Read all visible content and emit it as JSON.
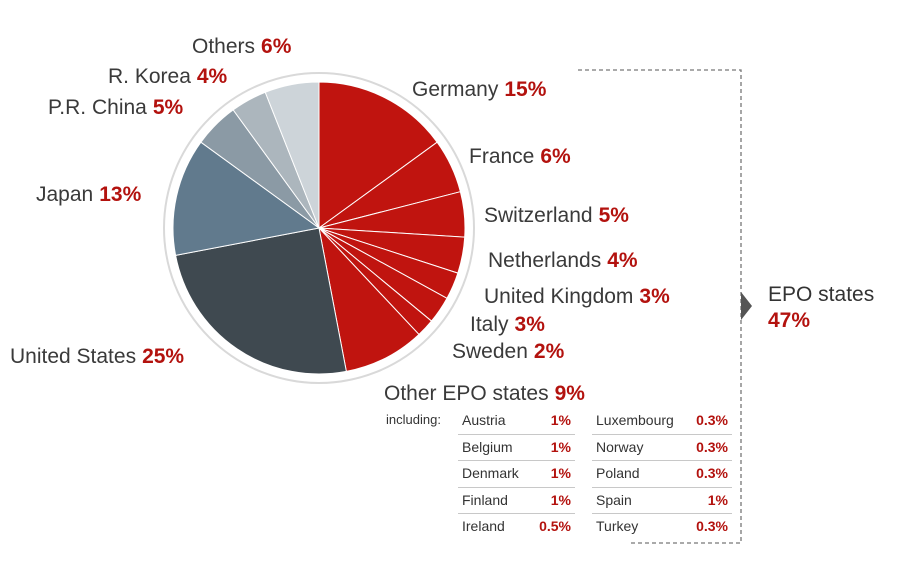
{
  "chart_data": {
    "type": "pie",
    "slices": [
      {
        "label": "Germany",
        "value": 15,
        "value_label": "15%",
        "color": "#c0140f"
      },
      {
        "label": "France",
        "value": 6,
        "value_label": "6%",
        "color": "#c0140f"
      },
      {
        "label": "Switzerland",
        "value": 5,
        "value_label": "5%",
        "color": "#c0140f"
      },
      {
        "label": "Netherlands",
        "value": 4,
        "value_label": "4%",
        "color": "#c0140f"
      },
      {
        "label": "United Kingdom",
        "value": 3,
        "value_label": "3%",
        "color": "#c0140f"
      },
      {
        "label": "Italy",
        "value": 3,
        "value_label": "3%",
        "color": "#c0140f"
      },
      {
        "label": "Sweden",
        "value": 2,
        "value_label": "2%",
        "color": "#c0140f"
      },
      {
        "label": "Other EPO states",
        "value": 9,
        "value_label": "9%",
        "color": "#c0140f"
      },
      {
        "label": "United States",
        "value": 25,
        "value_label": "25%",
        "color": "#3f4950"
      },
      {
        "label": "Japan",
        "value": 13,
        "value_label": "13%",
        "color": "#617a8d"
      },
      {
        "label": "P.R. China",
        "value": 5,
        "value_label": "5%",
        "color": "#8b9aa5"
      },
      {
        "label": "R. Korea",
        "value": 4,
        "value_label": "4%",
        "color": "#acb6bd"
      },
      {
        "label": "Others",
        "value": 6,
        "value_label": "6%",
        "color": "#cdd4d9"
      }
    ],
    "group": {
      "label": "EPO states",
      "value_label": "47%"
    },
    "other_epo_breakdown": {
      "intro": "including:",
      "left": [
        {
          "name": "Austria",
          "value": "1%"
        },
        {
          "name": "Belgium",
          "value": "1%"
        },
        {
          "name": "Denmark",
          "value": "1%"
        },
        {
          "name": "Finland",
          "value": "1%"
        },
        {
          "name": "Ireland",
          "value": "0.5%"
        }
      ],
      "right": [
        {
          "name": "Luxembourg",
          "value": "0.3%"
        },
        {
          "name": "Norway",
          "value": "0.3%"
        },
        {
          "name": "Poland",
          "value": "0.3%"
        },
        {
          "name": "Spain",
          "value": "1%"
        },
        {
          "name": "Turkey",
          "value": "0.3%"
        }
      ]
    }
  }
}
